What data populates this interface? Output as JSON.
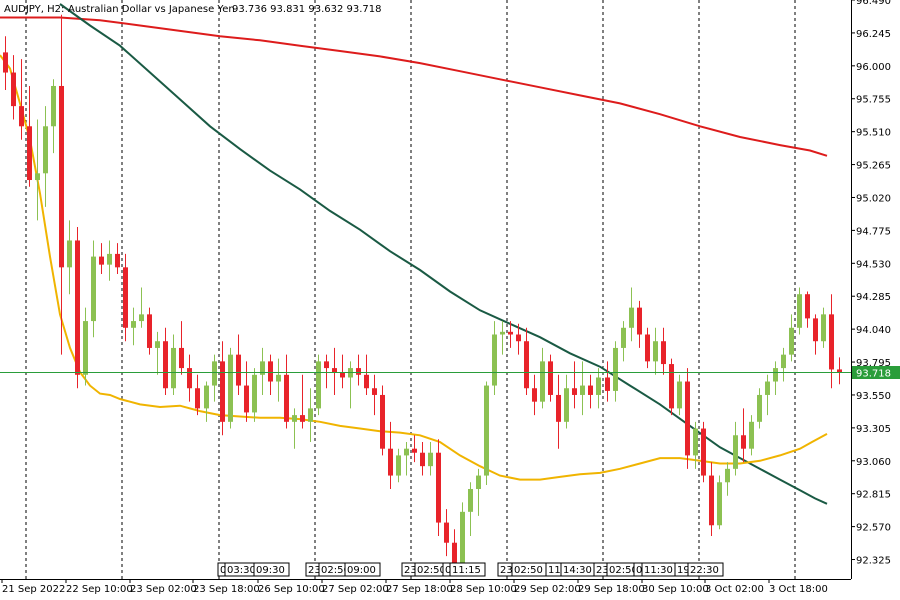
{
  "header": {
    "symbol": "AUDJPY, H2:",
    "description": "Australian Dollar vs Japanese Yen",
    "ohlc": "93.736 93.831 93.632 93.718"
  },
  "colors": {
    "bull": "#8cc152",
    "bear": "#e8232a",
    "ma_fast": "#f0b400",
    "ma_mid": "#1a5a44",
    "ma_slow": "#dd1c1c",
    "price_line": "#2a9d3a",
    "price_label_bg": "#2a9d3a",
    "grid": "#000000",
    "axis": "#000000"
  },
  "chart_data": {
    "type": "candlestick",
    "title": "AUDJPY, H2:  Australian Dollar vs Japanese Yen",
    "ylim": [
      92.18,
      96.49
    ],
    "y_ticks": [
      "96.490",
      "96.245",
      "96.000",
      "95.755",
      "95.510",
      "95.265",
      "95.020",
      "94.775",
      "94.530",
      "94.285",
      "94.040",
      "93.795",
      "93.550",
      "93.305",
      "93.060",
      "92.815",
      "92.570",
      "92.325"
    ],
    "x_labels": [
      "21 Sep 2022",
      "22 Sep 10:00",
      "23 Sep 02:00",
      "23 Sep 18:00",
      "26 Sep 10:00",
      "27 Sep 02:00",
      "27 Sep 18:00",
      "28 Sep 10:00",
      "29 Sep 02:00",
      "29 Sep 18:00",
      "30 Sep 10:00",
      "3 Oct 02:00",
      "3 Oct 18:00"
    ],
    "session_markers": [
      "0",
      "03:30",
      "09:30",
      "23:",
      "02:50",
      "09:00",
      "23:",
      "02:50",
      "0",
      "11:15",
      "23:",
      "02:50",
      "11:",
      "14:30",
      "23:",
      "02:50",
      "0",
      "11:30",
      "19:",
      "22:30"
    ],
    "current_price": "93.718",
    "candles": [
      {
        "o": 96.1,
        "h": 96.22,
        "l": 95.82,
        "c": 95.95
      },
      {
        "o": 95.95,
        "h": 96.08,
        "l": 95.6,
        "c": 95.7
      },
      {
        "o": 95.7,
        "h": 96.05,
        "l": 95.45,
        "c": 95.55
      },
      {
        "o": 95.55,
        "h": 95.85,
        "l": 95.1,
        "c": 95.15
      },
      {
        "o": 95.15,
        "h": 95.6,
        "l": 94.85,
        "c": 95.2
      },
      {
        "o": 95.2,
        "h": 95.7,
        "l": 94.95,
        "c": 95.55
      },
      {
        "o": 95.55,
        "h": 95.9,
        "l": 95.35,
        "c": 95.85
      },
      {
        "o": 95.85,
        "h": 96.38,
        "l": 93.85,
        "c": 94.5
      },
      {
        "o": 94.5,
        "h": 94.85,
        "l": 94.3,
        "c": 94.7
      },
      {
        "o": 94.7,
        "h": 94.8,
        "l": 93.6,
        "c": 93.7
      },
      {
        "o": 93.7,
        "h": 94.2,
        "l": 93.62,
        "c": 94.1
      },
      {
        "o": 94.1,
        "h": 94.7,
        "l": 93.98,
        "c": 94.58
      },
      {
        "o": 94.58,
        "h": 94.68,
        "l": 94.45,
        "c": 94.52
      },
      {
        "o": 94.52,
        "h": 94.7,
        "l": 94.4,
        "c": 94.6
      },
      {
        "o": 94.6,
        "h": 94.68,
        "l": 94.45,
        "c": 94.5
      },
      {
        "o": 94.5,
        "h": 94.6,
        "l": 93.95,
        "c": 94.05
      },
      {
        "o": 94.05,
        "h": 94.2,
        "l": 93.92,
        "c": 94.1
      },
      {
        "o": 94.1,
        "h": 94.35,
        "l": 94.05,
        "c": 94.15
      },
      {
        "o": 94.15,
        "h": 94.2,
        "l": 93.85,
        "c": 93.9
      },
      {
        "o": 93.9,
        "h": 94.02,
        "l": 93.7,
        "c": 93.95
      },
      {
        "o": 93.95,
        "h": 94.05,
        "l": 93.55,
        "c": 93.6
      },
      {
        "o": 93.6,
        "h": 94.0,
        "l": 93.55,
        "c": 93.9
      },
      {
        "o": 93.9,
        "h": 94.1,
        "l": 93.7,
        "c": 93.75
      },
      {
        "o": 93.75,
        "h": 93.85,
        "l": 93.5,
        "c": 93.6
      },
      {
        "o": 93.6,
        "h": 93.7,
        "l": 93.4,
        "c": 93.45
      },
      {
        "o": 93.45,
        "h": 93.65,
        "l": 93.35,
        "c": 93.62
      },
      {
        "o": 93.62,
        "h": 93.85,
        "l": 93.5,
        "c": 93.8
      },
      {
        "o": 93.8,
        "h": 93.95,
        "l": 93.25,
        "c": 93.35
      },
      {
        "o": 93.35,
        "h": 93.9,
        "l": 93.3,
        "c": 93.85
      },
      {
        "o": 93.85,
        "h": 94.0,
        "l": 93.55,
        "c": 93.62
      },
      {
        "o": 93.62,
        "h": 93.8,
        "l": 93.35,
        "c": 93.42
      },
      {
        "o": 93.42,
        "h": 93.75,
        "l": 93.35,
        "c": 93.7
      },
      {
        "o": 93.7,
        "h": 93.9,
        "l": 93.55,
        "c": 93.8
      },
      {
        "o": 93.8,
        "h": 93.85,
        "l": 93.55,
        "c": 93.65
      },
      {
        "o": 93.65,
        "h": 93.82,
        "l": 93.5,
        "c": 93.7
      },
      {
        "o": 93.7,
        "h": 93.85,
        "l": 93.3,
        "c": 93.35
      },
      {
        "o": 93.35,
        "h": 93.45,
        "l": 93.15,
        "c": 93.4
      },
      {
        "o": 93.4,
        "h": 93.7,
        "l": 93.3,
        "c": 93.35
      },
      {
        "o": 93.35,
        "h": 93.6,
        "l": 93.2,
        "c": 93.45
      },
      {
        "o": 93.45,
        "h": 93.85,
        "l": 93.4,
        "c": 93.8
      },
      {
        "o": 93.8,
        "h": 93.85,
        "l": 93.6,
        "c": 93.75
      },
      {
        "o": 93.75,
        "h": 93.9,
        "l": 93.55,
        "c": 93.72
      },
      {
        "o": 93.72,
        "h": 93.85,
        "l": 93.6,
        "c": 93.68
      },
      {
        "o": 93.68,
        "h": 93.8,
        "l": 93.45,
        "c": 93.75
      },
      {
        "o": 93.75,
        "h": 93.85,
        "l": 93.62,
        "c": 93.7
      },
      {
        "o": 93.7,
        "h": 93.85,
        "l": 93.55,
        "c": 93.6
      },
      {
        "o": 93.6,
        "h": 93.7,
        "l": 93.4,
        "c": 93.55
      },
      {
        "o": 93.55,
        "h": 93.62,
        "l": 93.1,
        "c": 93.15
      },
      {
        "o": 93.15,
        "h": 93.35,
        "l": 92.85,
        "c": 92.95
      },
      {
        "o": 92.95,
        "h": 93.15,
        "l": 92.9,
        "c": 93.1
      },
      {
        "o": 93.1,
        "h": 93.2,
        "l": 92.95,
        "c": 93.15
      },
      {
        "o": 93.15,
        "h": 93.25,
        "l": 93.05,
        "c": 93.12
      },
      {
        "o": 93.12,
        "h": 93.2,
        "l": 92.95,
        "c": 93.02
      },
      {
        "o": 93.02,
        "h": 93.2,
        "l": 92.95,
        "c": 93.12
      },
      {
        "o": 93.12,
        "h": 93.22,
        "l": 92.5,
        "c": 92.6
      },
      {
        "o": 92.6,
        "h": 92.7,
        "l": 92.35,
        "c": 92.45
      },
      {
        "o": 92.45,
        "h": 92.55,
        "l": 92.2,
        "c": 92.3
      },
      {
        "o": 92.3,
        "h": 92.75,
        "l": 92.2,
        "c": 92.68
      },
      {
        "o": 92.68,
        "h": 92.9,
        "l": 92.5,
        "c": 92.85
      },
      {
        "o": 92.85,
        "h": 93.0,
        "l": 92.65,
        "c": 92.95
      },
      {
        "o": 92.95,
        "h": 93.65,
        "l": 92.88,
        "c": 93.62
      },
      {
        "o": 93.62,
        "h": 94.1,
        "l": 93.55,
        "c": 94.0
      },
      {
        "o": 94.0,
        "h": 94.1,
        "l": 93.85,
        "c": 94.02
      },
      {
        "o": 94.02,
        "h": 94.1,
        "l": 93.9,
        "c": 94.0
      },
      {
        "o": 94.0,
        "h": 94.08,
        "l": 93.85,
        "c": 93.95
      },
      {
        "o": 93.95,
        "h": 94.05,
        "l": 93.55,
        "c": 93.6
      },
      {
        "o": 93.6,
        "h": 93.7,
        "l": 93.4,
        "c": 93.5
      },
      {
        "o": 93.5,
        "h": 93.9,
        "l": 93.45,
        "c": 93.8
      },
      {
        "o": 93.8,
        "h": 93.85,
        "l": 93.5,
        "c": 93.55
      },
      {
        "o": 93.55,
        "h": 93.7,
        "l": 93.15,
        "c": 93.35
      },
      {
        "o": 93.35,
        "h": 93.7,
        "l": 93.3,
        "c": 93.6
      },
      {
        "o": 93.6,
        "h": 93.8,
        "l": 93.45,
        "c": 93.55
      },
      {
        "o": 93.55,
        "h": 93.8,
        "l": 93.4,
        "c": 93.62
      },
      {
        "o": 93.62,
        "h": 93.7,
        "l": 93.45,
        "c": 93.55
      },
      {
        "o": 93.55,
        "h": 93.75,
        "l": 93.45,
        "c": 93.68
      },
      {
        "o": 93.68,
        "h": 93.8,
        "l": 93.5,
        "c": 93.58
      },
      {
        "o": 93.58,
        "h": 93.95,
        "l": 93.5,
        "c": 93.9
      },
      {
        "o": 93.9,
        "h": 94.1,
        "l": 93.8,
        "c": 94.05
      },
      {
        "o": 94.05,
        "h": 94.35,
        "l": 93.95,
        "c": 94.2
      },
      {
        "o": 94.2,
        "h": 94.25,
        "l": 93.9,
        "c": 94.0
      },
      {
        "o": 94.0,
        "h": 94.05,
        "l": 93.75,
        "c": 93.8
      },
      {
        "o": 93.8,
        "h": 94.05,
        "l": 93.7,
        "c": 93.95
      },
      {
        "o": 93.95,
        "h": 94.05,
        "l": 93.7,
        "c": 93.78
      },
      {
        "o": 93.78,
        "h": 93.82,
        "l": 93.4,
        "c": 93.45
      },
      {
        "o": 93.45,
        "h": 93.7,
        "l": 93.4,
        "c": 93.65
      },
      {
        "o": 93.65,
        "h": 93.75,
        "l": 93.0,
        "c": 93.1
      },
      {
        "o": 93.1,
        "h": 93.35,
        "l": 93.0,
        "c": 93.3
      },
      {
        "o": 93.3,
        "h": 93.35,
        "l": 92.9,
        "c": 92.95
      },
      {
        "o": 92.95,
        "h": 93.05,
        "l": 92.5,
        "c": 92.58
      },
      {
        "o": 92.58,
        "h": 92.95,
        "l": 92.55,
        "c": 92.9
      },
      {
        "o": 92.9,
        "h": 93.05,
        "l": 92.8,
        "c": 93.0
      },
      {
        "o": 93.0,
        "h": 93.35,
        "l": 92.95,
        "c": 93.25
      },
      {
        "o": 93.25,
        "h": 93.45,
        "l": 93.05,
        "c": 93.15
      },
      {
        "o": 93.15,
        "h": 93.4,
        "l": 93.1,
        "c": 93.35
      },
      {
        "o": 93.35,
        "h": 93.6,
        "l": 93.3,
        "c": 93.55
      },
      {
        "o": 93.55,
        "h": 93.7,
        "l": 93.4,
        "c": 93.65
      },
      {
        "o": 93.65,
        "h": 93.8,
        "l": 93.55,
        "c": 93.75
      },
      {
        "o": 93.75,
        "h": 93.9,
        "l": 93.65,
        "c": 93.85
      },
      {
        "o": 93.85,
        "h": 94.15,
        "l": 93.8,
        "c": 94.05
      },
      {
        "o": 94.05,
        "h": 94.35,
        "l": 94.0,
        "c": 94.3
      },
      {
        "o": 94.3,
        "h": 94.32,
        "l": 94.05,
        "c": 94.12
      },
      {
        "o": 94.12,
        "h": 94.15,
        "l": 93.85,
        "c": 93.95
      },
      {
        "o": 93.95,
        "h": 94.2,
        "l": 93.9,
        "c": 94.15
      },
      {
        "o": 94.15,
        "h": 94.3,
        "l": 93.6,
        "c": 93.74
      },
      {
        "o": 93.74,
        "h": 93.83,
        "l": 93.63,
        "c": 93.72
      }
    ],
    "ma_fast": [
      [
        0,
        96.08
      ],
      [
        10,
        95.98
      ],
      [
        20,
        95.72
      ],
      [
        30,
        95.45
      ],
      [
        40,
        95.05
      ],
      [
        50,
        94.58
      ],
      [
        60,
        94.15
      ],
      [
        70,
        93.9
      ],
      [
        80,
        93.72
      ],
      [
        90,
        93.62
      ],
      [
        100,
        93.56
      ],
      [
        110,
        93.55
      ],
      [
        120,
        93.52
      ],
      [
        140,
        93.48
      ],
      [
        160,
        93.46
      ],
      [
        180,
        93.47
      ],
      [
        200,
        93.43
      ],
      [
        220,
        93.4
      ],
      [
        240,
        93.39
      ],
      [
        260,
        93.38
      ],
      [
        280,
        93.38
      ],
      [
        300,
        93.37
      ],
      [
        320,
        93.35
      ],
      [
        340,
        93.32
      ],
      [
        360,
        93.3
      ],
      [
        380,
        93.28
      ],
      [
        400,
        93.27
      ],
      [
        420,
        93.25
      ],
      [
        440,
        93.2
      ],
      [
        460,
        93.1
      ],
      [
        480,
        93.02
      ],
      [
        500,
        92.95
      ],
      [
        520,
        92.92
      ],
      [
        540,
        92.92
      ],
      [
        560,
        92.94
      ],
      [
        580,
        92.96
      ],
      [
        600,
        92.97
      ],
      [
        620,
        93.0
      ],
      [
        640,
        93.04
      ],
      [
        660,
        93.08
      ],
      [
        680,
        93.08
      ],
      [
        700,
        93.06
      ],
      [
        720,
        93.04
      ],
      [
        740,
        93.04
      ],
      [
        760,
        93.06
      ],
      [
        780,
        93.1
      ],
      [
        800,
        93.15
      ],
      [
        812,
        93.2
      ],
      [
        827,
        93.26
      ]
    ],
    "ma_mid": [
      [
        60,
        96.46
      ],
      [
        90,
        96.3
      ],
      [
        120,
        96.15
      ],
      [
        150,
        95.95
      ],
      [
        180,
        95.75
      ],
      [
        210,
        95.55
      ],
      [
        240,
        95.38
      ],
      [
        270,
        95.22
      ],
      [
        300,
        95.08
      ],
      [
        330,
        94.92
      ],
      [
        360,
        94.78
      ],
      [
        390,
        94.62
      ],
      [
        420,
        94.48
      ],
      [
        450,
        94.32
      ],
      [
        480,
        94.18
      ],
      [
        510,
        94.08
      ],
      [
        540,
        93.98
      ],
      [
        570,
        93.86
      ],
      [
        600,
        93.76
      ],
      [
        630,
        93.62
      ],
      [
        660,
        93.48
      ],
      [
        690,
        93.32
      ],
      [
        720,
        93.16
      ],
      [
        750,
        93.04
      ],
      [
        780,
        92.92
      ],
      [
        800,
        92.84
      ],
      [
        815,
        92.78
      ],
      [
        827,
        92.74
      ]
    ],
    "ma_slow": [
      [
        0,
        96.36
      ],
      [
        60,
        96.36
      ],
      [
        100,
        96.34
      ],
      [
        140,
        96.3
      ],
      [
        180,
        96.26
      ],
      [
        220,
        96.22
      ],
      [
        260,
        96.19
      ],
      [
        300,
        96.15
      ],
      [
        340,
        96.11
      ],
      [
        380,
        96.07
      ],
      [
        420,
        96.02
      ],
      [
        460,
        95.96
      ],
      [
        500,
        95.9
      ],
      [
        540,
        95.84
      ],
      [
        580,
        95.78
      ],
      [
        620,
        95.72
      ],
      [
        660,
        95.64
      ],
      [
        700,
        95.55
      ],
      [
        740,
        95.47
      ],
      [
        780,
        95.41
      ],
      [
        810,
        95.37
      ],
      [
        827,
        95.33
      ]
    ]
  }
}
